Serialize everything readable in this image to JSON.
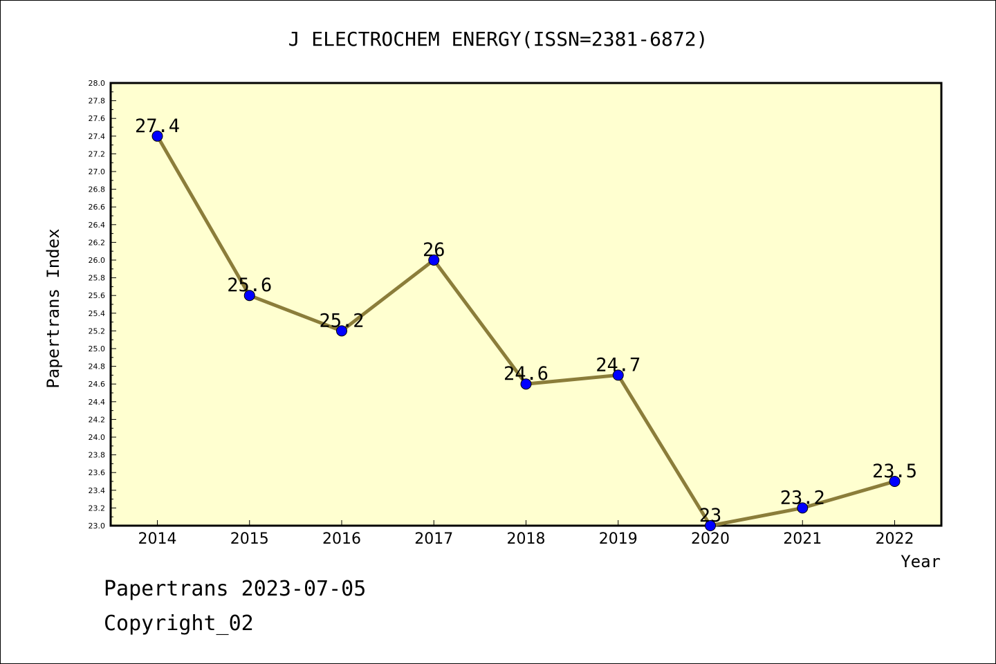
{
  "chart_data": {
    "type": "line",
    "title": "J ELECTROCHEM ENERGY(ISSN=2381-6872)",
    "xlabel": "Year",
    "ylabel": "Papertrans Index",
    "categories": [
      "2014",
      "2015",
      "2016",
      "2017",
      "2018",
      "2019",
      "2020",
      "2021",
      "2022"
    ],
    "series": [
      {
        "values": [
          27.4,
          25.6,
          25.2,
          26,
          24.6,
          24.7,
          23,
          23.2,
          23.5
        ],
        "labels": [
          "27.4",
          "25.6",
          "25.2",
          "26",
          "24.6",
          "24.7",
          "23",
          "23.2",
          "23.5"
        ]
      }
    ],
    "ylim": [
      23.0,
      28.0
    ],
    "ytick_step": 0.2,
    "yticks": [
      "23.0",
      "23.2",
      "23.4",
      "23.6",
      "23.8",
      "24.0",
      "24.2",
      "24.4",
      "24.6",
      "24.8",
      "25.0",
      "25.2",
      "25.4",
      "25.6",
      "25.8",
      "26.0",
      "26.2",
      "26.4",
      "26.6",
      "26.8",
      "27.0",
      "27.2",
      "27.4",
      "27.6",
      "27.8",
      "28.0"
    ],
    "grid": false,
    "legend": "none",
    "colors": {
      "plot_background": "#ffffd0",
      "line": "#8b7d3a",
      "marker": "#0000ff"
    }
  },
  "footer": {
    "date_text": "Papertrans 2023-07-05",
    "copyright_text": "Copyright_02"
  }
}
